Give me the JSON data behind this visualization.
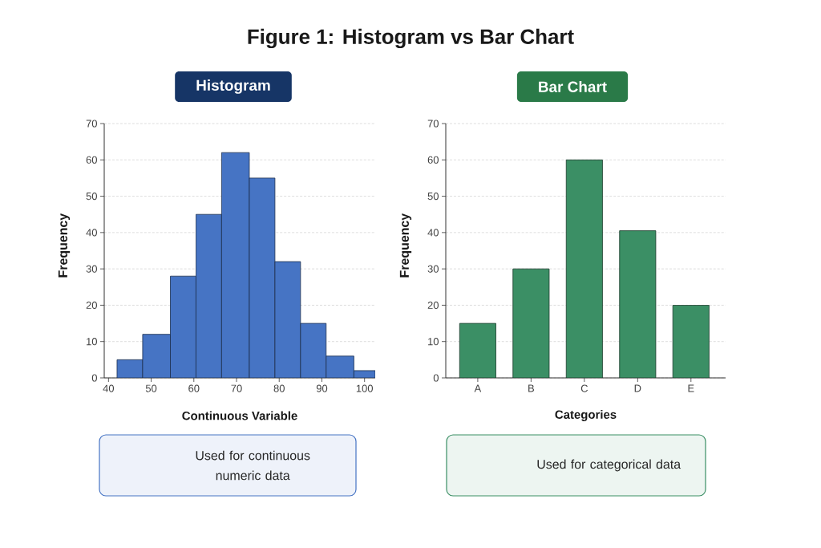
{
  "chart_data": [
    {
      "type": "histogram",
      "title": "Figure 1: Histogram vs Bar Chart",
      "subtitle": "Histogram",
      "xlabel": "Continuous Variable",
      "ylabel": "Frequency",
      "bins": [
        42,
        48,
        54.5,
        60.5,
        66.5,
        73,
        79,
        85,
        91,
        97.5,
        102.5
      ],
      "values": [
        5,
        12,
        28,
        45,
        62,
        55,
        32,
        15,
        6,
        2
      ],
      "color": "#4674c4",
      "xlim": [
        39,
        102.5
      ],
      "xticks": [
        40,
        50,
        60,
        70,
        80,
        90,
        100
      ],
      "ylim": [
        0,
        70
      ],
      "yticks": [
        0,
        10,
        20,
        30,
        40,
        50,
        60,
        70
      ],
      "grid": "y",
      "annotations": [
        "Used for continuous numeric data"
      ]
    },
    {
      "type": "bar",
      "subtitle": "Bar Chart",
      "xlabel": "Categories",
      "ylabel": "Frequency",
      "categories": [
        "A",
        "B",
        "C",
        "D",
        "E"
      ],
      "values": [
        15,
        30,
        60,
        40.5,
        20
      ],
      "color": "#3b8f65",
      "ylim": [
        0,
        70
      ],
      "yticks": [
        0,
        10,
        20,
        30,
        40,
        50,
        60,
        70
      ],
      "grid": "y",
      "annotations": [
        "Used for categorical data"
      ]
    }
  ]
}
